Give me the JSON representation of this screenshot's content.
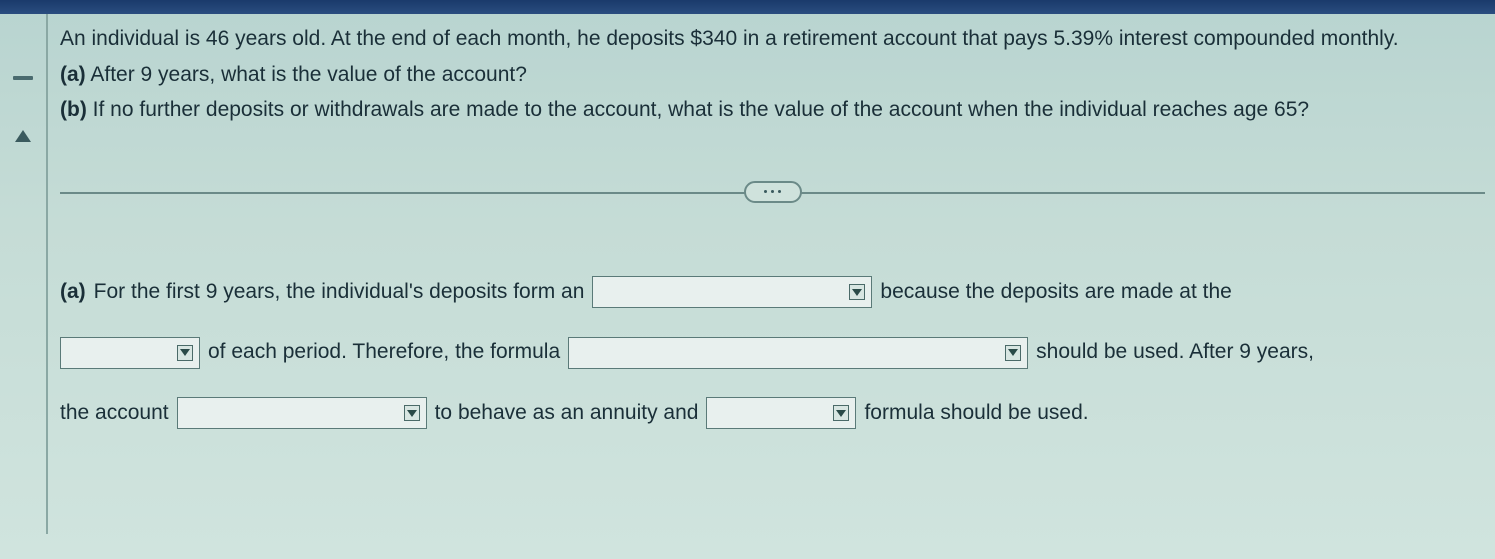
{
  "problem": {
    "intro": "An individual is 46 years old. At the end of each month, he deposits $340 in a retirement account that pays 5.39% interest compounded monthly.",
    "part_a_label": "(a)",
    "part_a_text": " After 9 years, what is the value of the account?",
    "part_b_label": "(b)",
    "part_b_text": " If no further deposits or withdrawals are made to the account, what is the value of the account when the individual reaches age 65?"
  },
  "answer": {
    "a_label": "(a)",
    "seg1": " For the first 9 years, the individual's deposits form an",
    "seg2": "because the deposits are made at the",
    "seg3": "of each period. Therefore, the formula",
    "seg4": "should be used. After 9 years,",
    "seg5": "the account",
    "seg6": "to behave as an annuity and",
    "seg7": "formula should be used."
  },
  "dropdowns": {
    "dd1_value": "",
    "dd2_value": "",
    "dd3_value": "",
    "dd4_value": "",
    "dd5_value": ""
  },
  "colors": {
    "text": "#1a2f38",
    "border": "#6b8a88",
    "bg_top": "#b8d4d0",
    "bg_bottom": "#d0e4de",
    "topbar": "#1a3a6b"
  }
}
